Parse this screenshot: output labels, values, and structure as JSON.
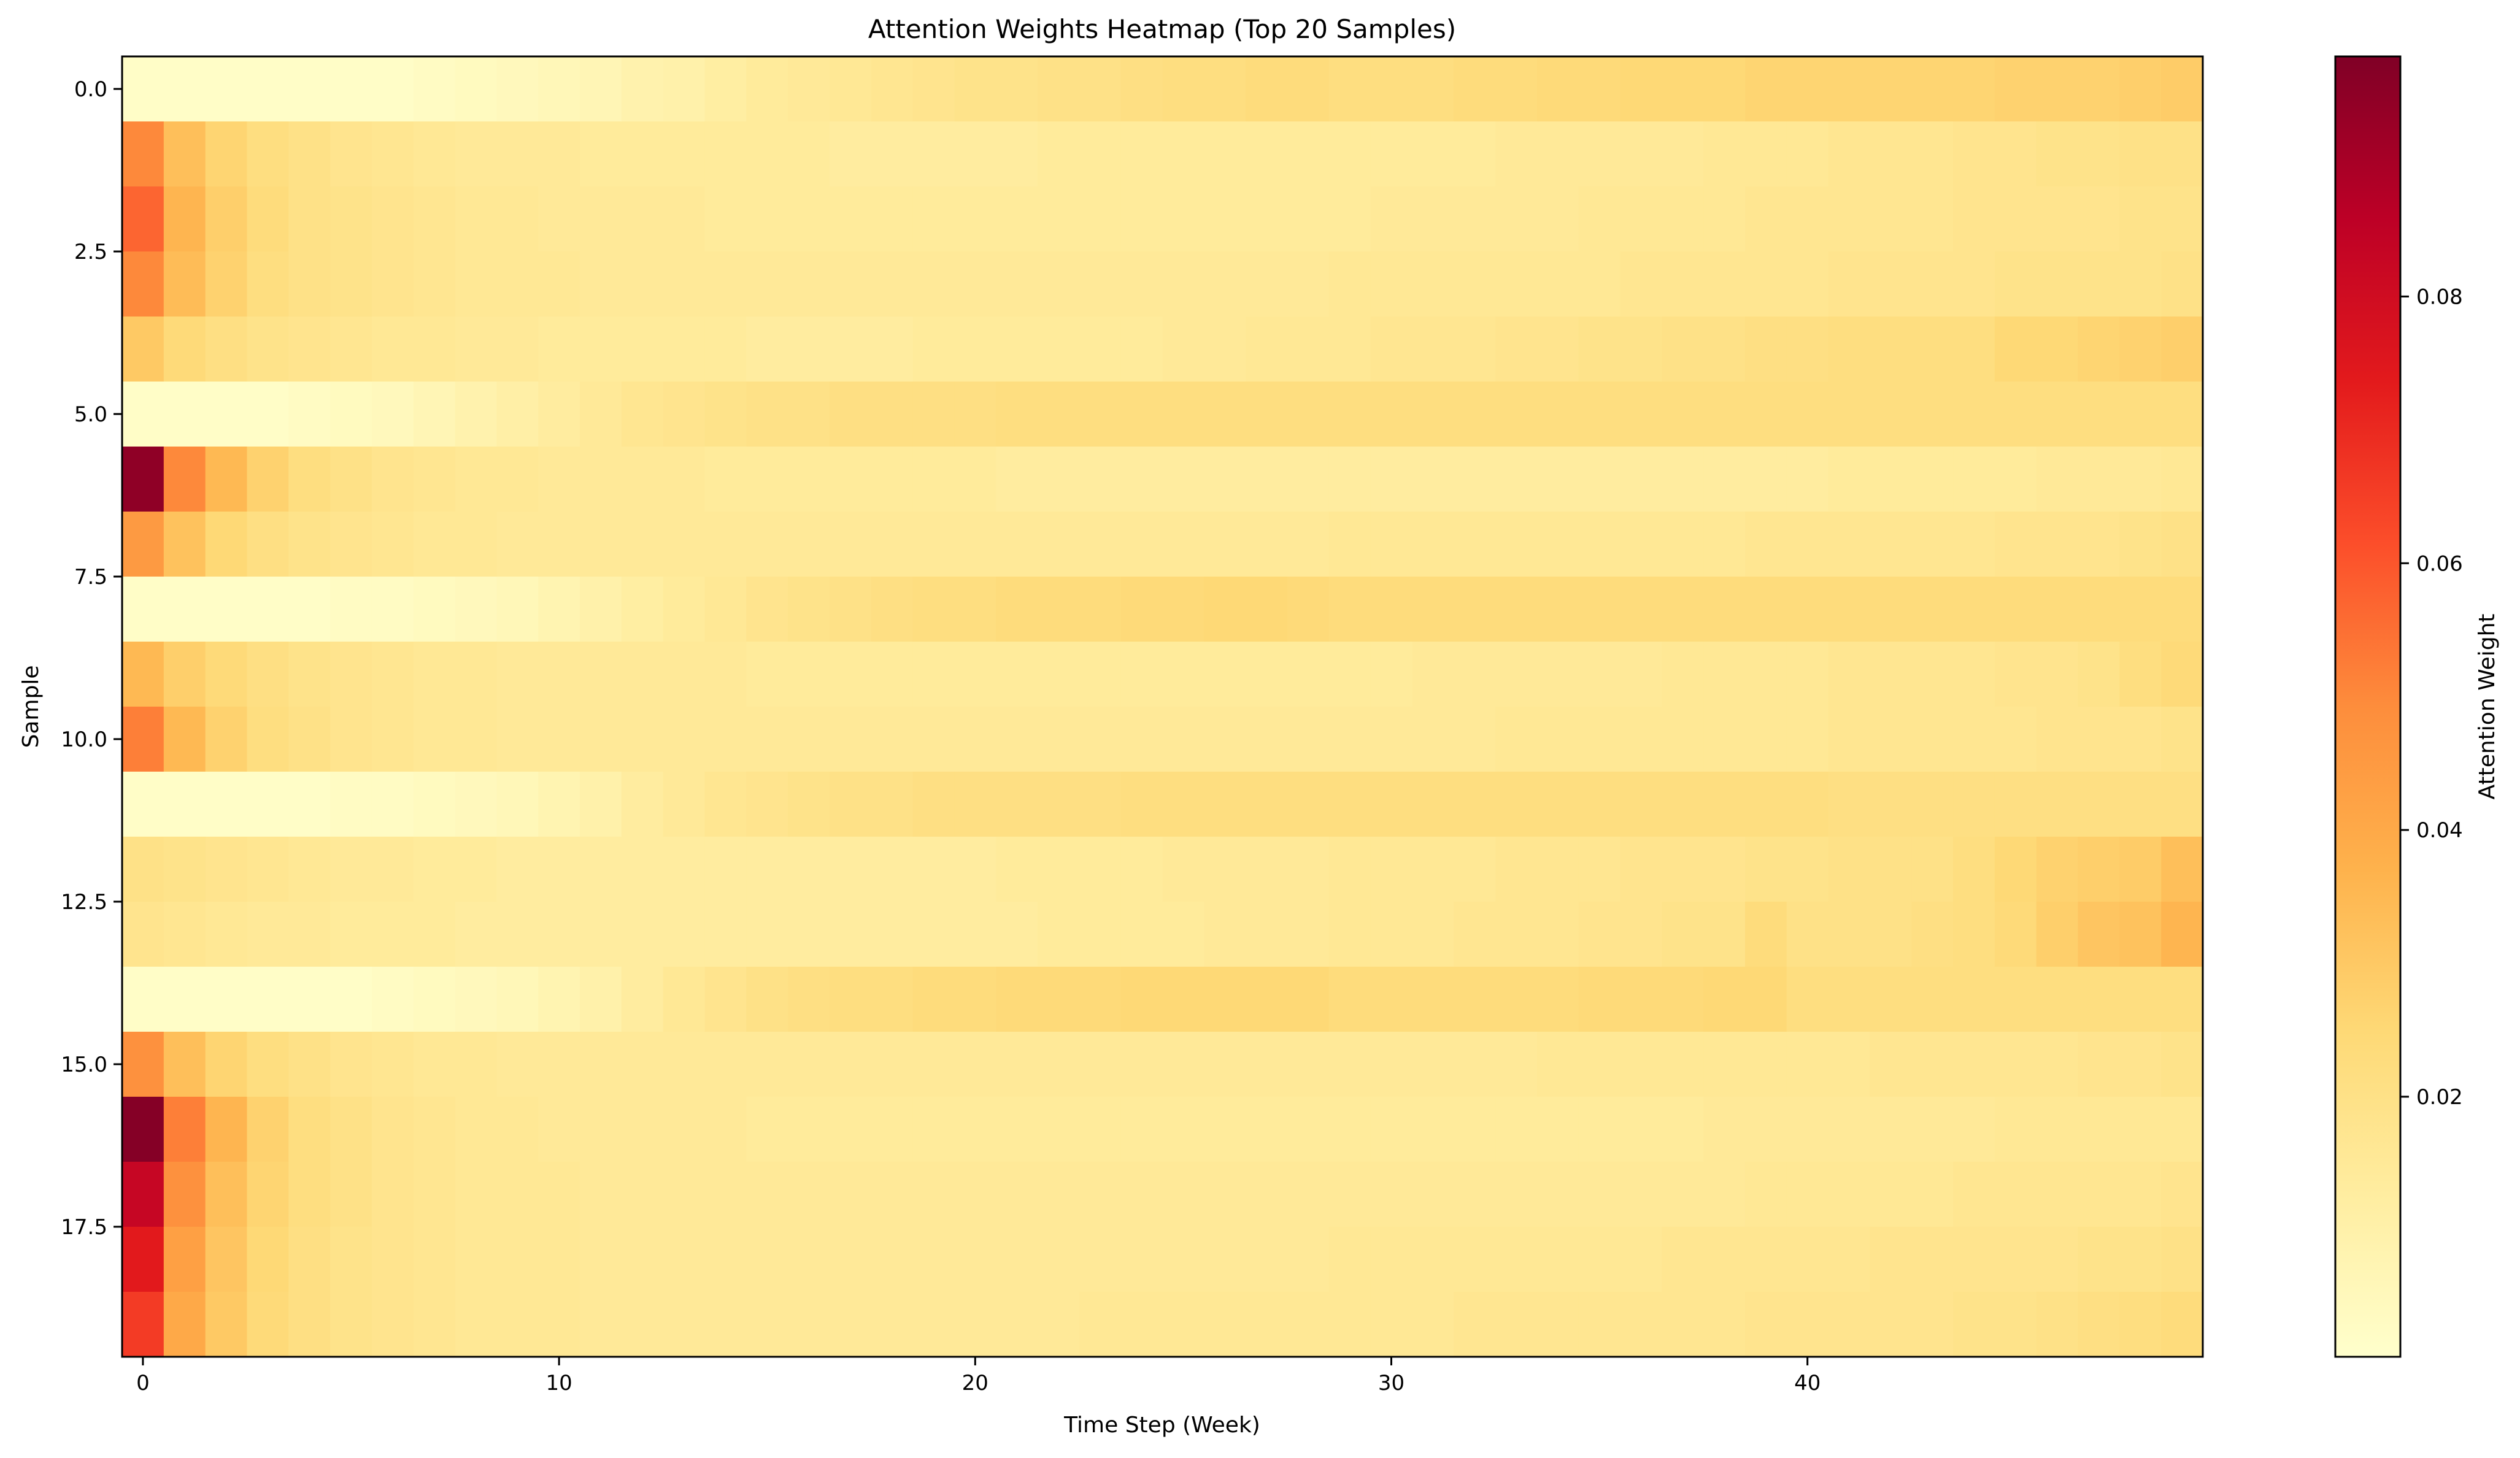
{
  "chart_data": {
    "type": "heatmap",
    "title": "Attention Weights Heatmap (Top 20 Samples)",
    "xlabel": "Time Step (Week)",
    "ylabel": "Sample",
    "colorbar_label": "Attention Weight",
    "colormap": "YlOrRd",
    "colors": {
      "low": "#ffffcc",
      "stops": [
        "#ffffcc",
        "#ffeda0",
        "#fed976",
        "#feb24c",
        "#fd8d3c",
        "#fc4e2a",
        "#e31a1c",
        "#bd0026",
        "#800026"
      ]
    },
    "value_range": [
      0.0005,
      0.098
    ],
    "x_range": [
      -0.5,
      49.5
    ],
    "y_range": [
      -0.5,
      19.5
    ],
    "x_ticks": [
      0,
      10,
      20,
      30,
      40
    ],
    "x_tick_labels": [
      "0",
      "10",
      "20",
      "30",
      "40"
    ],
    "y_ticks": [
      0,
      2.5,
      5,
      7.5,
      10,
      12.5,
      15,
      17.5
    ],
    "y_tick_labels": [
      "0.0",
      "2.5",
      "5.0",
      "7.5",
      "10.0",
      "12.5",
      "15.0",
      "17.5"
    ],
    "colorbar_ticks": [
      0.02,
      0.04,
      0.06,
      0.08
    ],
    "colorbar_tick_labels": [
      "0.02",
      "0.04",
      "0.06",
      "0.08"
    ],
    "grid": false,
    "rows": [
      [
        0.002,
        0.002,
        0.002,
        0.002,
        0.002,
        0.002,
        0.002,
        0.003,
        0.004,
        0.005,
        0.006,
        0.007,
        0.009,
        0.01,
        0.012,
        0.014,
        0.015,
        0.016,
        0.017,
        0.018,
        0.019,
        0.019,
        0.02,
        0.02,
        0.021,
        0.022,
        0.022,
        0.023,
        0.023,
        0.022,
        0.022,
        0.022,
        0.023,
        0.023,
        0.024,
        0.024,
        0.025,
        0.025,
        0.025,
        0.026,
        0.026,
        0.026,
        0.026,
        0.026,
        0.026,
        0.027,
        0.027,
        0.027,
        0.028,
        0.029
      ],
      [
        0.05,
        0.033,
        0.026,
        0.022,
        0.02,
        0.018,
        0.017,
        0.016,
        0.015,
        0.015,
        0.015,
        0.014,
        0.014,
        0.014,
        0.014,
        0.014,
        0.014,
        0.013,
        0.013,
        0.013,
        0.013,
        0.013,
        0.014,
        0.014,
        0.014,
        0.014,
        0.014,
        0.014,
        0.014,
        0.014,
        0.014,
        0.014,
        0.014,
        0.015,
        0.015,
        0.015,
        0.015,
        0.015,
        0.016,
        0.016,
        0.016,
        0.017,
        0.017,
        0.017,
        0.018,
        0.018,
        0.019,
        0.019,
        0.02,
        0.02
      ],
      [
        0.057,
        0.036,
        0.028,
        0.023,
        0.02,
        0.019,
        0.018,
        0.017,
        0.016,
        0.016,
        0.015,
        0.015,
        0.015,
        0.015,
        0.014,
        0.014,
        0.014,
        0.014,
        0.014,
        0.014,
        0.014,
        0.014,
        0.014,
        0.014,
        0.014,
        0.014,
        0.014,
        0.014,
        0.014,
        0.014,
        0.015,
        0.015,
        0.015,
        0.015,
        0.015,
        0.016,
        0.016,
        0.016,
        0.016,
        0.017,
        0.017,
        0.017,
        0.017,
        0.017,
        0.018,
        0.018,
        0.018,
        0.018,
        0.019,
        0.019
      ],
      [
        0.05,
        0.034,
        0.027,
        0.022,
        0.02,
        0.019,
        0.018,
        0.017,
        0.016,
        0.016,
        0.016,
        0.015,
        0.015,
        0.015,
        0.015,
        0.015,
        0.015,
        0.015,
        0.015,
        0.015,
        0.015,
        0.015,
        0.015,
        0.015,
        0.015,
        0.015,
        0.015,
        0.015,
        0.015,
        0.016,
        0.016,
        0.016,
        0.016,
        0.016,
        0.016,
        0.016,
        0.017,
        0.017,
        0.017,
        0.017,
        0.017,
        0.018,
        0.018,
        0.018,
        0.018,
        0.019,
        0.019,
        0.019,
        0.019,
        0.02
      ],
      [
        0.03,
        0.024,
        0.021,
        0.019,
        0.018,
        0.017,
        0.016,
        0.016,
        0.015,
        0.015,
        0.014,
        0.014,
        0.014,
        0.014,
        0.014,
        0.013,
        0.013,
        0.013,
        0.013,
        0.014,
        0.014,
        0.014,
        0.014,
        0.014,
        0.014,
        0.015,
        0.015,
        0.016,
        0.016,
        0.016,
        0.017,
        0.017,
        0.017,
        0.018,
        0.018,
        0.019,
        0.019,
        0.02,
        0.02,
        0.021,
        0.021,
        0.022,
        0.022,
        0.022,
        0.022,
        0.025,
        0.025,
        0.026,
        0.027,
        0.028
      ],
      [
        0.002,
        0.002,
        0.002,
        0.002,
        0.003,
        0.004,
        0.005,
        0.007,
        0.009,
        0.011,
        0.013,
        0.015,
        0.017,
        0.018,
        0.019,
        0.02,
        0.02,
        0.021,
        0.021,
        0.021,
        0.021,
        0.022,
        0.022,
        0.022,
        0.022,
        0.022,
        0.022,
        0.022,
        0.022,
        0.022,
        0.022,
        0.022,
        0.022,
        0.022,
        0.022,
        0.022,
        0.022,
        0.022,
        0.022,
        0.022,
        0.022,
        0.022,
        0.022,
        0.022,
        0.022,
        0.022,
        0.022,
        0.022,
        0.022,
        0.022
      ],
      [
        0.095,
        0.05,
        0.035,
        0.027,
        0.022,
        0.02,
        0.018,
        0.017,
        0.016,
        0.016,
        0.015,
        0.015,
        0.015,
        0.015,
        0.014,
        0.014,
        0.014,
        0.014,
        0.014,
        0.014,
        0.014,
        0.013,
        0.013,
        0.013,
        0.013,
        0.013,
        0.013,
        0.013,
        0.013,
        0.013,
        0.013,
        0.013,
        0.013,
        0.013,
        0.013,
        0.013,
        0.013,
        0.013,
        0.013,
        0.013,
        0.013,
        0.014,
        0.014,
        0.014,
        0.014,
        0.014,
        0.015,
        0.015,
        0.015,
        0.016
      ],
      [
        0.045,
        0.032,
        0.025,
        0.021,
        0.019,
        0.018,
        0.017,
        0.016,
        0.016,
        0.015,
        0.015,
        0.015,
        0.015,
        0.015,
        0.015,
        0.015,
        0.015,
        0.015,
        0.015,
        0.015,
        0.015,
        0.015,
        0.015,
        0.015,
        0.015,
        0.015,
        0.015,
        0.015,
        0.015,
        0.016,
        0.016,
        0.016,
        0.016,
        0.016,
        0.016,
        0.016,
        0.016,
        0.016,
        0.016,
        0.017,
        0.017,
        0.017,
        0.017,
        0.017,
        0.017,
        0.018,
        0.018,
        0.018,
        0.019,
        0.02
      ],
      [
        0.002,
        0.002,
        0.002,
        0.002,
        0.002,
        0.003,
        0.003,
        0.004,
        0.005,
        0.006,
        0.008,
        0.01,
        0.012,
        0.014,
        0.016,
        0.018,
        0.019,
        0.02,
        0.021,
        0.022,
        0.022,
        0.023,
        0.023,
        0.023,
        0.024,
        0.024,
        0.025,
        0.025,
        0.024,
        0.023,
        0.023,
        0.023,
        0.023,
        0.023,
        0.023,
        0.023,
        0.023,
        0.023,
        0.023,
        0.023,
        0.023,
        0.023,
        0.023,
        0.023,
        0.023,
        0.023,
        0.023,
        0.023,
        0.023,
        0.023
      ],
      [
        0.035,
        0.028,
        0.024,
        0.021,
        0.019,
        0.018,
        0.017,
        0.016,
        0.016,
        0.015,
        0.015,
        0.015,
        0.015,
        0.015,
        0.015,
        0.014,
        0.014,
        0.014,
        0.014,
        0.014,
        0.014,
        0.014,
        0.014,
        0.014,
        0.014,
        0.014,
        0.014,
        0.014,
        0.014,
        0.014,
        0.014,
        0.015,
        0.015,
        0.015,
        0.015,
        0.015,
        0.015,
        0.016,
        0.016,
        0.016,
        0.016,
        0.017,
        0.017,
        0.017,
        0.017,
        0.018,
        0.018,
        0.019,
        0.022,
        0.024
      ],
      [
        0.052,
        0.035,
        0.027,
        0.022,
        0.02,
        0.018,
        0.017,
        0.016,
        0.016,
        0.015,
        0.015,
        0.015,
        0.015,
        0.015,
        0.015,
        0.015,
        0.015,
        0.015,
        0.015,
        0.015,
        0.015,
        0.015,
        0.015,
        0.015,
        0.015,
        0.015,
        0.015,
        0.015,
        0.015,
        0.015,
        0.015,
        0.015,
        0.015,
        0.016,
        0.016,
        0.016,
        0.016,
        0.016,
        0.016,
        0.016,
        0.016,
        0.017,
        0.017,
        0.017,
        0.017,
        0.017,
        0.018,
        0.018,
        0.018,
        0.019
      ],
      [
        0.002,
        0.002,
        0.002,
        0.002,
        0.002,
        0.003,
        0.003,
        0.004,
        0.005,
        0.006,
        0.008,
        0.01,
        0.013,
        0.015,
        0.017,
        0.018,
        0.019,
        0.02,
        0.02,
        0.021,
        0.021,
        0.021,
        0.021,
        0.021,
        0.022,
        0.022,
        0.022,
        0.022,
        0.022,
        0.022,
        0.022,
        0.022,
        0.022,
        0.022,
        0.022,
        0.022,
        0.022,
        0.022,
        0.022,
        0.022,
        0.022,
        0.021,
        0.021,
        0.021,
        0.021,
        0.021,
        0.021,
        0.021,
        0.021,
        0.021
      ],
      [
        0.02,
        0.019,
        0.018,
        0.017,
        0.016,
        0.015,
        0.015,
        0.014,
        0.014,
        0.013,
        0.013,
        0.013,
        0.013,
        0.013,
        0.013,
        0.013,
        0.013,
        0.013,
        0.013,
        0.013,
        0.013,
        0.014,
        0.014,
        0.014,
        0.014,
        0.015,
        0.015,
        0.015,
        0.015,
        0.016,
        0.016,
        0.016,
        0.016,
        0.017,
        0.017,
        0.017,
        0.018,
        0.018,
        0.018,
        0.019,
        0.019,
        0.02,
        0.02,
        0.02,
        0.022,
        0.025,
        0.027,
        0.028,
        0.029,
        0.033
      ],
      [
        0.018,
        0.017,
        0.016,
        0.015,
        0.015,
        0.014,
        0.014,
        0.014,
        0.013,
        0.013,
        0.013,
        0.013,
        0.013,
        0.013,
        0.013,
        0.013,
        0.013,
        0.013,
        0.013,
        0.013,
        0.013,
        0.013,
        0.014,
        0.014,
        0.014,
        0.014,
        0.015,
        0.015,
        0.015,
        0.016,
        0.016,
        0.016,
        0.017,
        0.017,
        0.017,
        0.018,
        0.018,
        0.019,
        0.019,
        0.023,
        0.02,
        0.02,
        0.02,
        0.021,
        0.022,
        0.024,
        0.028,
        0.031,
        0.032,
        0.036
      ],
      [
        0.002,
        0.002,
        0.002,
        0.002,
        0.002,
        0.002,
        0.003,
        0.004,
        0.005,
        0.006,
        0.008,
        0.01,
        0.013,
        0.016,
        0.018,
        0.02,
        0.021,
        0.022,
        0.022,
        0.023,
        0.023,
        0.024,
        0.024,
        0.024,
        0.025,
        0.025,
        0.025,
        0.025,
        0.025,
        0.023,
        0.023,
        0.023,
        0.023,
        0.023,
        0.023,
        0.024,
        0.024,
        0.024,
        0.025,
        0.025,
        0.022,
        0.022,
        0.022,
        0.022,
        0.022,
        0.022,
        0.022,
        0.022,
        0.022,
        0.022
      ],
      [
        0.048,
        0.033,
        0.026,
        0.022,
        0.02,
        0.018,
        0.017,
        0.016,
        0.016,
        0.015,
        0.015,
        0.015,
        0.015,
        0.015,
        0.015,
        0.015,
        0.015,
        0.015,
        0.015,
        0.015,
        0.015,
        0.015,
        0.015,
        0.015,
        0.015,
        0.015,
        0.015,
        0.015,
        0.015,
        0.015,
        0.015,
        0.015,
        0.015,
        0.015,
        0.016,
        0.016,
        0.016,
        0.016,
        0.016,
        0.016,
        0.016,
        0.016,
        0.017,
        0.017,
        0.017,
        0.017,
        0.017,
        0.018,
        0.018,
        0.019
      ],
      [
        0.097,
        0.052,
        0.036,
        0.027,
        0.022,
        0.02,
        0.018,
        0.017,
        0.016,
        0.016,
        0.015,
        0.015,
        0.015,
        0.015,
        0.015,
        0.014,
        0.014,
        0.014,
        0.014,
        0.014,
        0.014,
        0.014,
        0.014,
        0.014,
        0.014,
        0.014,
        0.014,
        0.014,
        0.014,
        0.014,
        0.014,
        0.014,
        0.014,
        0.014,
        0.014,
        0.014,
        0.014,
        0.014,
        0.015,
        0.015,
        0.015,
        0.015,
        0.015,
        0.015,
        0.015,
        0.016,
        0.016,
        0.016,
        0.016,
        0.016
      ],
      [
        0.083,
        0.048,
        0.033,
        0.026,
        0.022,
        0.02,
        0.018,
        0.017,
        0.016,
        0.016,
        0.016,
        0.015,
        0.015,
        0.015,
        0.015,
        0.015,
        0.015,
        0.015,
        0.015,
        0.015,
        0.015,
        0.015,
        0.015,
        0.015,
        0.015,
        0.015,
        0.015,
        0.015,
        0.015,
        0.015,
        0.015,
        0.015,
        0.015,
        0.015,
        0.015,
        0.015,
        0.015,
        0.015,
        0.015,
        0.016,
        0.016,
        0.016,
        0.016,
        0.016,
        0.017,
        0.017,
        0.017,
        0.017,
        0.017,
        0.018
      ],
      [
        0.074,
        0.043,
        0.031,
        0.025,
        0.021,
        0.019,
        0.018,
        0.017,
        0.016,
        0.016,
        0.016,
        0.015,
        0.015,
        0.015,
        0.015,
        0.015,
        0.015,
        0.015,
        0.015,
        0.015,
        0.015,
        0.015,
        0.015,
        0.015,
        0.015,
        0.015,
        0.015,
        0.015,
        0.015,
        0.016,
        0.016,
        0.016,
        0.016,
        0.016,
        0.016,
        0.016,
        0.016,
        0.017,
        0.017,
        0.017,
        0.017,
        0.017,
        0.018,
        0.018,
        0.018,
        0.018,
        0.018,
        0.019,
        0.019,
        0.02
      ],
      [
        0.066,
        0.04,
        0.03,
        0.024,
        0.021,
        0.019,
        0.018,
        0.017,
        0.016,
        0.016,
        0.016,
        0.015,
        0.015,
        0.015,
        0.015,
        0.015,
        0.015,
        0.015,
        0.015,
        0.015,
        0.015,
        0.015,
        0.015,
        0.016,
        0.016,
        0.016,
        0.016,
        0.016,
        0.016,
        0.016,
        0.016,
        0.016,
        0.017,
        0.017,
        0.017,
        0.017,
        0.017,
        0.017,
        0.017,
        0.018,
        0.018,
        0.018,
        0.018,
        0.018,
        0.019,
        0.019,
        0.02,
        0.021,
        0.022,
        0.023
      ]
    ]
  }
}
